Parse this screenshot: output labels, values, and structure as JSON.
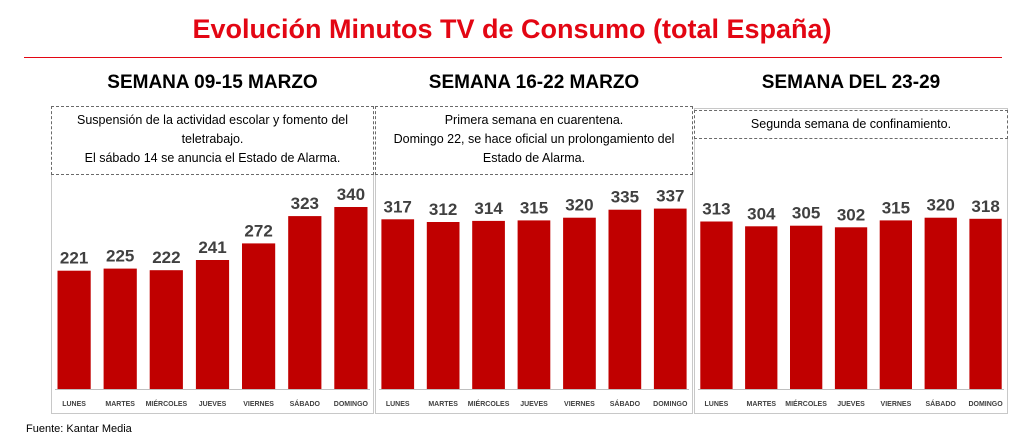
{
  "title": "Evolución Minutos TV de Consumo (total España)",
  "source": "Fuente: Kantar Media",
  "colors": {
    "bar": "#c00000",
    "title": "#e30613"
  },
  "chart_data": {
    "type": "bar",
    "categories": [
      "LUNES",
      "MARTES",
      "MIÉRCOLES",
      "JUEVES",
      "VIERNES",
      "SÁBADO",
      "DOMINGO"
    ],
    "ylim": [
      0,
      340
    ],
    "grid": false,
    "panels": [
      {
        "title": "SEMANA 09-15 MARZO",
        "note": [
          "Suspensión de la actividad escolar y fomento del",
          "teletrabajo.",
          "El sábado 14 se anuncia el Estado de Alarma."
        ],
        "values": [
          221,
          225,
          222,
          241,
          272,
          323,
          340
        ]
      },
      {
        "title": "SEMANA 16-22 MARZO",
        "note": [
          "Primera semana en cuarentena.",
          "Domingo 22,  se hace oficial un prolongamiento del",
          "Estado de Alarma."
        ],
        "values": [
          317,
          312,
          314,
          315,
          320,
          335,
          337
        ]
      },
      {
        "title": "SEMANA DEL 23-29",
        "note": [
          "Segunda semana de confinamiento."
        ],
        "values": [
          313,
          304,
          305,
          302,
          315,
          320,
          318
        ]
      }
    ]
  }
}
